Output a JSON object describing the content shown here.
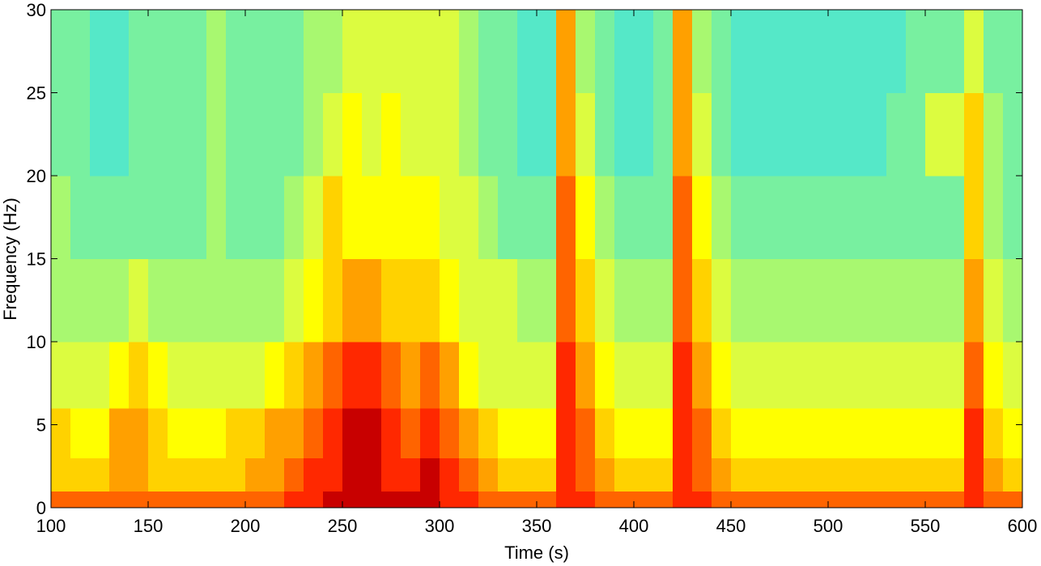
{
  "chart_data": {
    "type": "heatmap",
    "x_label": "Time (s)",
    "y_label": "Frequency (Hz)",
    "xlim": [
      100,
      600
    ],
    "xticks": [
      100,
      150,
      200,
      250,
      300,
      350,
      400,
      450,
      500,
      550,
      600
    ],
    "ylim": [
      0,
      30
    ],
    "yticks": [
      0,
      5,
      10,
      15,
      20,
      25,
      30
    ],
    "xbins": [
      100,
      110,
      120,
      130,
      140,
      150,
      160,
      170,
      180,
      190,
      200,
      210,
      220,
      230,
      240,
      250,
      260,
      270,
      280,
      290,
      300,
      310,
      320,
      330,
      340,
      350,
      360,
      370,
      380,
      390,
      400,
      410,
      420,
      430,
      440,
      450,
      460,
      470,
      480,
      490,
      500,
      510,
      520,
      530,
      540,
      550,
      560,
      570,
      580,
      590,
      600
    ],
    "ybins": [
      0,
      1,
      3,
      6,
      10,
      15,
      20,
      25,
      30
    ],
    "colormap": [
      "#55e8c8",
      "#78f0a0",
      "#a8f870",
      "#dcfc40",
      "#ffff00",
      "#ffd200",
      "#ffa000",
      "#ff6400",
      "#ff2800",
      "#c80000"
    ],
    "z": [
      [
        7,
        7,
        7,
        7,
        7,
        7,
        7,
        7,
        7,
        7,
        7,
        7,
        8,
        8,
        9,
        9,
        9,
        9,
        9,
        9,
        8,
        8,
        7,
        7,
        7,
        7,
        8,
        8,
        7,
        7,
        7,
        7,
        8,
        8,
        7,
        7,
        7,
        7,
        7,
        7,
        7,
        7,
        7,
        7,
        7,
        7,
        7,
        8,
        7,
        7
      ],
      [
        5,
        5,
        5,
        6,
        6,
        5,
        5,
        5,
        5,
        5,
        6,
        6,
        7,
        8,
        8,
        9,
        9,
        8,
        8,
        9,
        8,
        7,
        6,
        5,
        5,
        5,
        8,
        7,
        6,
        5,
        5,
        5,
        8,
        7,
        6,
        5,
        5,
        5,
        5,
        5,
        5,
        5,
        5,
        5,
        5,
        5,
        5,
        8,
        6,
        5
      ],
      [
        5,
        4,
        4,
        6,
        6,
        5,
        4,
        4,
        4,
        5,
        5,
        6,
        6,
        7,
        8,
        9,
        9,
        8,
        7,
        8,
        7,
        6,
        5,
        4,
        4,
        4,
        8,
        7,
        5,
        4,
        4,
        4,
        8,
        7,
        5,
        4,
        4,
        4,
        4,
        4,
        4,
        4,
        4,
        4,
        4,
        4,
        4,
        8,
        5,
        4
      ],
      [
        3,
        3,
        3,
        4,
        5,
        4,
        3,
        3,
        3,
        3,
        3,
        4,
        5,
        6,
        7,
        8,
        8,
        7,
        6,
        7,
        6,
        4,
        3,
        3,
        3,
        3,
        8,
        6,
        4,
        3,
        3,
        3,
        8,
        6,
        4,
        3,
        3,
        3,
        3,
        3,
        3,
        3,
        3,
        3,
        3,
        3,
        3,
        7,
        4,
        3
      ],
      [
        2,
        2,
        2,
        2,
        3,
        2,
        2,
        2,
        2,
        2,
        2,
        2,
        3,
        4,
        5,
        6,
        6,
        5,
        5,
        5,
        4,
        3,
        3,
        3,
        2,
        2,
        7,
        5,
        3,
        2,
        2,
        2,
        7,
        5,
        3,
        2,
        2,
        2,
        2,
        2,
        2,
        2,
        2,
        2,
        2,
        2,
        2,
        6,
        3,
        2
      ],
      [
        2,
        1,
        1,
        1,
        1,
        1,
        1,
        1,
        2,
        1,
        1,
        1,
        2,
        3,
        5,
        4,
        4,
        4,
        4,
        4,
        3,
        3,
        2,
        1,
        1,
        1,
        7,
        4,
        2,
        1,
        1,
        1,
        7,
        4,
        2,
        1,
        1,
        1,
        1,
        1,
        1,
        1,
        1,
        1,
        1,
        1,
        1,
        5,
        2,
        1
      ],
      [
        1,
        1,
        0,
        0,
        1,
        1,
        1,
        1,
        2,
        1,
        1,
        1,
        1,
        2,
        3,
        4,
        3,
        4,
        3,
        3,
        3,
        2,
        1,
        1,
        0,
        0,
        6,
        3,
        1,
        0,
        0,
        1,
        6,
        3,
        1,
        0,
        0,
        0,
        0,
        0,
        0,
        0,
        0,
        1,
        1,
        3,
        3,
        5,
        2,
        1
      ],
      [
        1,
        1,
        0,
        0,
        1,
        1,
        1,
        1,
        2,
        1,
        1,
        1,
        1,
        2,
        2,
        3,
        3,
        3,
        3,
        3,
        3,
        2,
        1,
        1,
        0,
        0,
        6,
        2,
        1,
        0,
        0,
        1,
        6,
        2,
        1,
        0,
        0,
        0,
        0,
        0,
        0,
        0,
        0,
        0,
        1,
        1,
        1,
        3,
        1,
        1
      ]
    ]
  }
}
